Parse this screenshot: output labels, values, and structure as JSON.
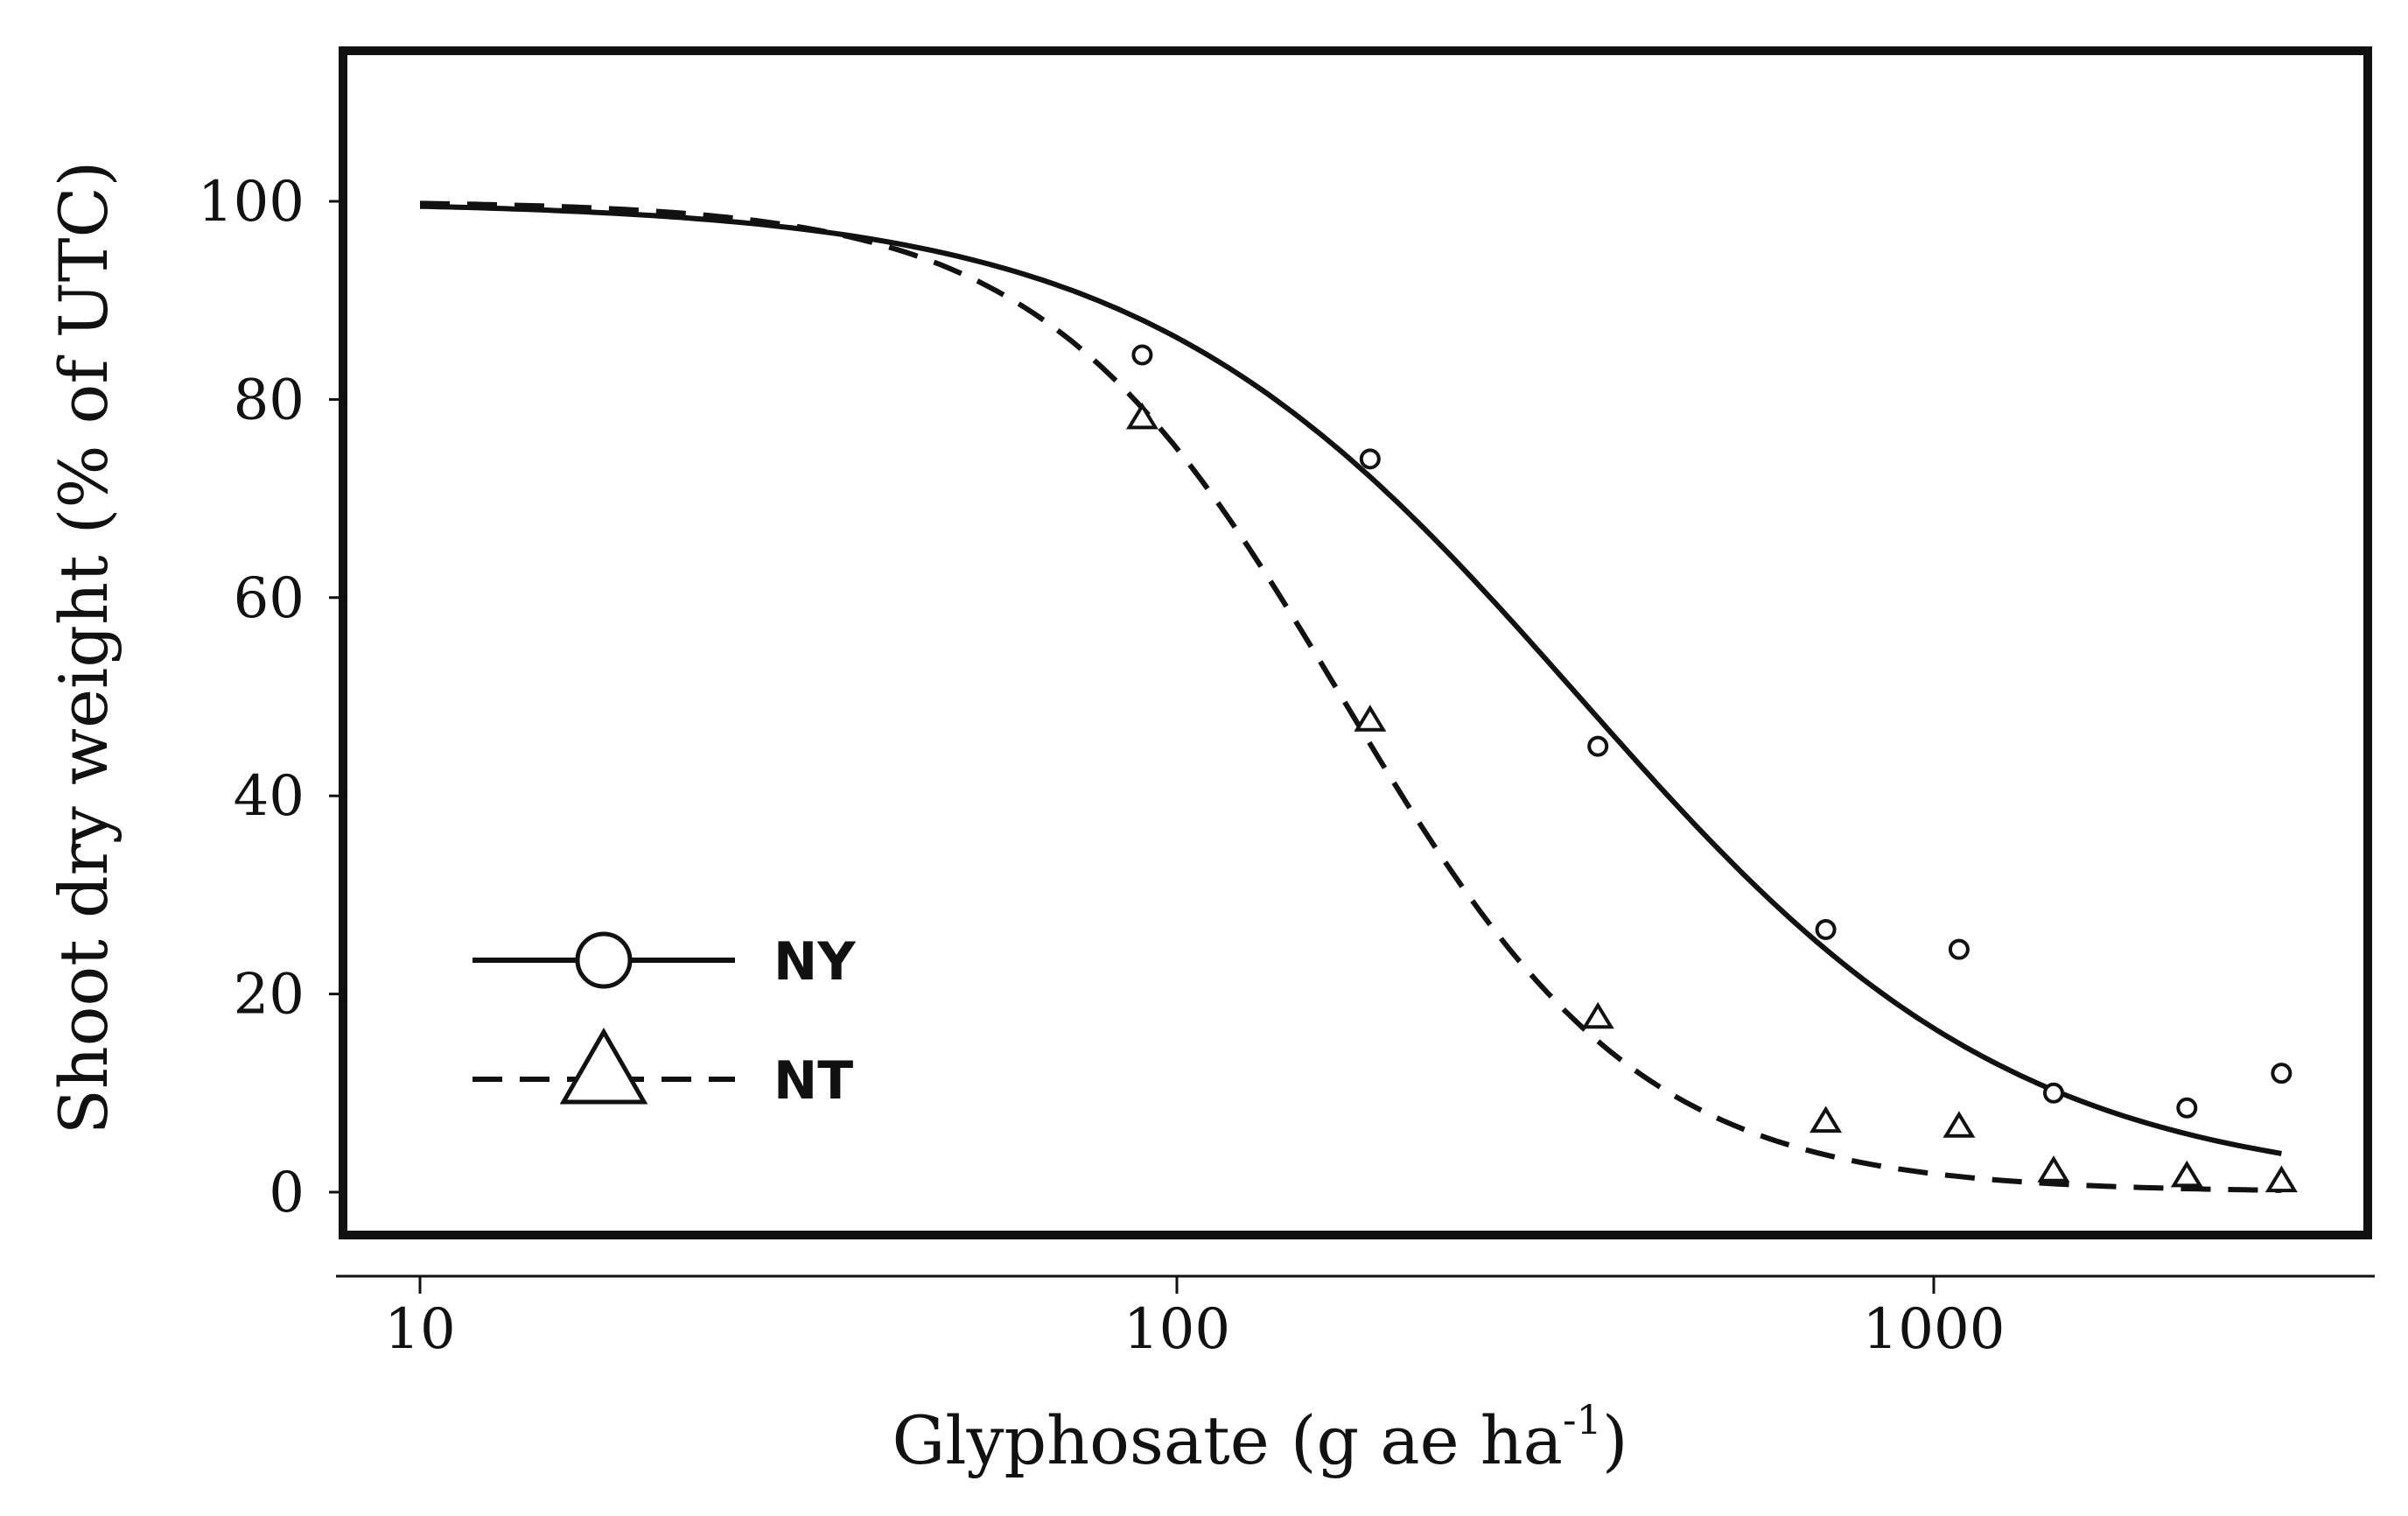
{
  "chart_data": {
    "type": "scatter",
    "xlabel": "Glyphosate (g ae ha",
    "xlabel_sup": "-1",
    "xlabel_end": ")",
    "ylabel": "Shoot dry weight (% of UTC)",
    "x_scale": "log",
    "xlim": [
      8.5,
      4200
    ],
    "ylim": [
      -5,
      115
    ],
    "x_ticks": [
      10,
      100,
      1000
    ],
    "x_tick_labels": [
      "10",
      "100",
      "1000"
    ],
    "y_ticks": [
      0,
      20,
      40,
      60,
      80,
      100
    ],
    "y_tick_labels": [
      "0",
      "20",
      "40",
      "60",
      "80",
      "100"
    ],
    "grid": false,
    "legend_position": "bottom-left",
    "series": [
      {
        "name": "NY",
        "marker": "circle",
        "line_style": "solid",
        "points": {
          "x": [
            90,
            180,
            360,
            720,
            1080,
            1440,
            2160,
            2880
          ],
          "y": [
            84.5,
            74,
            45,
            26.5,
            24.5,
            10,
            8.5,
            12
          ]
        },
        "fit": {
          "model": "log-logistic",
          "lower": 0,
          "upper": 100,
          "ed50": 340,
          "slope": 1.5,
          "x_range": [
            10,
            2880
          ]
        }
      },
      {
        "name": "NT",
        "marker": "triangle",
        "line_style": "dashed",
        "points": {
          "x": [
            90,
            180,
            360,
            720,
            1080,
            1440,
            2160,
            2880
          ],
          "y": [
            78,
            47.5,
            17.5,
            7,
            6.5,
            2,
            1.5,
            1
          ]
        },
        "fit": {
          "model": "log-logistic",
          "lower": 0,
          "upper": 100,
          "ed50": 165,
          "slope": 2.2,
          "x_range": [
            10,
            2880
          ]
        }
      }
    ]
  }
}
